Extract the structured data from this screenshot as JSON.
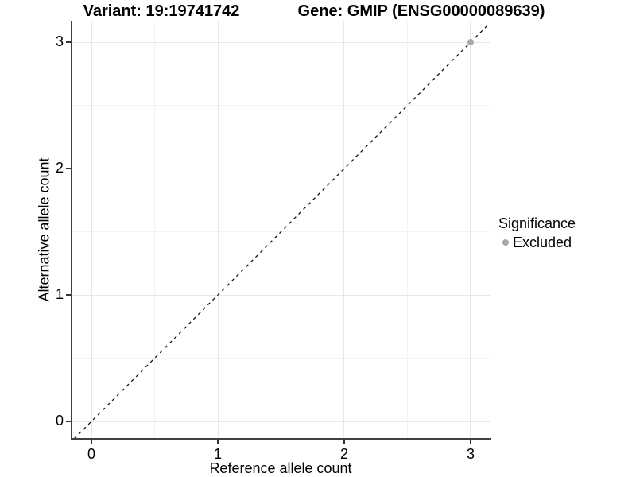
{
  "figure": {
    "title_left": "Variant: 19:19741742",
    "title_right": "Gene: GMIP (ENSG00000089639)"
  },
  "chart_data": {
    "type": "scatter",
    "title_left": "Variant: 19:19741742",
    "title_right": "Gene: GMIP (ENSG00000089639)",
    "xlabel": "Reference allele count",
    "ylabel": "Alternative allele count",
    "xlim": [
      -0.151,
      3.151
    ],
    "ylim": [
      -0.138,
      3.164
    ],
    "x_major_ticks": [
      0,
      1,
      2,
      3
    ],
    "y_major_ticks": [
      0,
      1,
      2,
      3
    ],
    "x_minor_ticks": [
      0.5,
      1.5,
      2.5
    ],
    "y_minor_ticks": [
      0.5,
      1.5,
      2.5
    ],
    "grid": true,
    "points": [
      {
        "x": 3,
        "y": 3,
        "series": "Excluded",
        "color": "#a8a8a8"
      }
    ],
    "reference_line": {
      "equation": "y = x",
      "style": "dashed",
      "color": "#111111"
    },
    "legend": {
      "title": "Significance",
      "position": "right",
      "items": [
        {
          "label": "Excluded",
          "color": "#a8a8a8"
        }
      ]
    }
  },
  "colors": {
    "background": "#ffffff",
    "grid_major": "#e7e7e7",
    "grid_minor": "#f3f3f3",
    "axis_line": "#404040",
    "tick_mark": "#333333",
    "text": "#000000"
  }
}
